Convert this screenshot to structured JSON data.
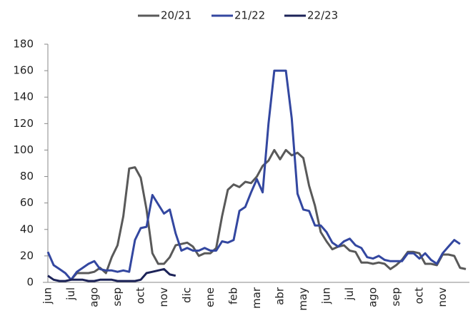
{
  "chart_data": {
    "type": "line",
    "categories": [
      "jun",
      null,
      null,
      null,
      "jul",
      null,
      null,
      null,
      "ago",
      null,
      null,
      null,
      "sep",
      null,
      null,
      null,
      "oct",
      null,
      null,
      null,
      "nov",
      null,
      null,
      null,
      "dic",
      null,
      null,
      null,
      "ene",
      null,
      null,
      null,
      "feb",
      null,
      null,
      null,
      "mar",
      null,
      null,
      null,
      "abr",
      null,
      null,
      null,
      "may",
      null,
      null,
      null,
      "jun",
      null,
      null,
      null,
      "jul",
      null,
      null,
      null,
      "ago",
      null,
      null,
      null,
      "sep",
      null,
      null,
      null,
      "oct",
      null,
      null,
      null,
      "nov",
      null,
      null,
      null,
      null
    ],
    "series": [
      {
        "name": "20/21",
        "color": "#595959",
        "values": [
          null,
          null,
          null,
          null,
          2,
          7,
          7,
          7,
          8,
          11,
          7,
          19,
          28,
          50,
          86,
          87,
          79,
          55,
          22,
          14,
          14,
          19,
          28,
          29,
          30,
          27,
          20,
          22,
          22,
          26,
          50,
          70,
          74,
          72,
          76,
          75,
          80,
          88,
          92,
          100,
          93,
          100,
          96,
          98,
          94,
          73,
          58,
          38,
          31,
          25,
          27,
          28,
          24,
          23,
          15,
          15,
          14,
          15,
          14,
          10,
          13,
          17,
          23,
          23,
          22,
          14,
          14,
          13,
          21,
          21,
          20,
          11,
          10
        ]
      },
      {
        "name": "21/22",
        "color": "#3347a0",
        "values": [
          23,
          13,
          10,
          7,
          2,
          8,
          11,
          14,
          16,
          10,
          9,
          9,
          8,
          9,
          8,
          32,
          41,
          42,
          66,
          59,
          52,
          55,
          37,
          24,
          26,
          24,
          24,
          26,
          24,
          24,
          31,
          30,
          32,
          54,
          57,
          68,
          78,
          68,
          120,
          160,
          160,
          160,
          124,
          67,
          55,
          54,
          43,
          43,
          38,
          30,
          27,
          31,
          33,
          28,
          26,
          19,
          18,
          20,
          17,
          16,
          16,
          16,
          22,
          22,
          18,
          22,
          17,
          14,
          22,
          27,
          32,
          29,
          null
        ]
      },
      {
        "name": "22/23",
        "color": "#1c2358",
        "values": [
          5,
          2,
          1,
          1,
          2,
          2,
          2,
          1,
          1,
          2,
          2,
          2,
          1,
          1,
          1,
          1,
          2,
          7,
          8,
          9,
          10,
          6,
          5,
          null,
          null,
          null,
          null,
          null,
          null,
          null,
          null,
          null,
          null,
          null,
          null,
          null,
          null,
          null,
          null,
          null,
          null,
          null,
          null,
          null,
          null,
          null,
          null,
          null,
          null,
          null,
          null,
          null,
          null,
          null,
          null,
          null,
          null,
          null,
          null,
          null,
          null,
          null,
          null,
          null,
          null,
          null,
          null,
          null,
          null,
          null,
          null,
          null,
          null
        ]
      }
    ],
    "ylim": [
      0,
      180
    ],
    "yticks": [
      0,
      20,
      40,
      60,
      80,
      100,
      120,
      140,
      160,
      180
    ],
    "legend": "top"
  }
}
